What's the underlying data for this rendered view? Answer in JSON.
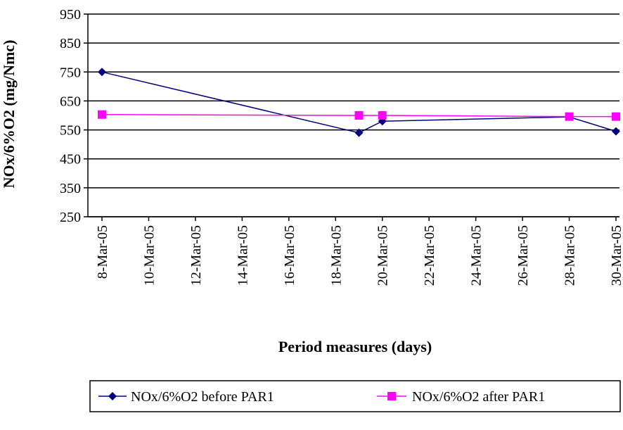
{
  "chart_data": {
    "type": "line",
    "title": "",
    "xlabel": "Period measures (days)",
    "ylabel": "NOx/6%O2 (mg/Nmc)",
    "ylim": [
      250,
      950
    ],
    "yticks": [
      950,
      850,
      750,
      650,
      550,
      450,
      350,
      250
    ],
    "x_range": [
      "2005-03-08",
      "2005-03-30"
    ],
    "xticks": [
      "8-Mar-05",
      "10-Mar-05",
      "12-Mar-05",
      "14-Mar-05",
      "16-Mar-05",
      "18-Mar-05",
      "20-Mar-05",
      "22-Mar-05",
      "24-Mar-05",
      "26-Mar-05",
      "28-Mar-05",
      "30-Mar-05"
    ],
    "xtick_dates": [
      "2005-03-08",
      "2005-03-10",
      "2005-03-12",
      "2005-03-14",
      "2005-03-16",
      "2005-03-18",
      "2005-03-20",
      "2005-03-22",
      "2005-03-24",
      "2005-03-26",
      "2005-03-28",
      "2005-03-30"
    ],
    "grid": "horizontal",
    "legend_position": "bottom",
    "series": [
      {
        "name": "NOx/6%O2 before PAR1",
        "color": "#000080",
        "marker": "diamond",
        "x": [
          "2005-03-08",
          "2005-03-19",
          "2005-03-20",
          "2005-03-28",
          "2005-03-30"
        ],
        "values": [
          750,
          540,
          580,
          595,
          545
        ]
      },
      {
        "name": "NOx/6%O2 after PAR1",
        "color": "#ff00ff",
        "marker": "square",
        "x": [
          "2005-03-08",
          "2005-03-19",
          "2005-03-20",
          "2005-03-28",
          "2005-03-30"
        ],
        "values": [
          603,
          600,
          600,
          596,
          596
        ]
      }
    ]
  }
}
